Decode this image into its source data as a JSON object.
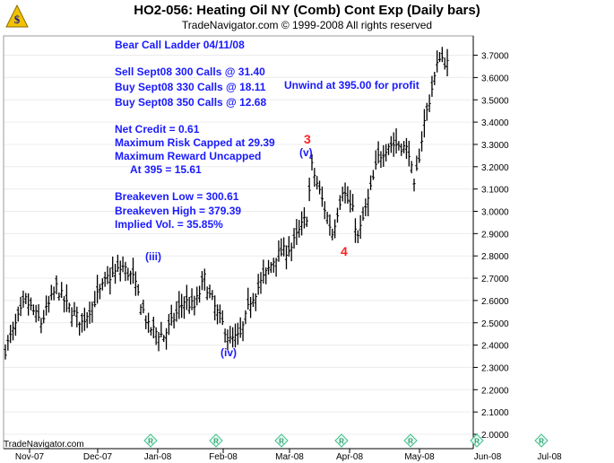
{
  "header": {
    "title": "HO2-056:  Heating Oil NY (Comb) Cont Exp  (Daily bars)",
    "copyright": "TradeNavigator.com © 1999-2008 All rights reserved"
  },
  "watermark": "TradeNavigator.com",
  "notes": {
    "strategy_title": "Bear Call Ladder 04/11/08",
    "leg1": "Sell Sept08 300 Calls @ 31.40",
    "leg2": "Buy Sept08 330 Calls @ 18.11",
    "leg3": "Buy Sept08 350 Calls @ 12.68",
    "net_credit": "Net Credit = 0.61",
    "max_risk": "Maximum Risk Capped at 29.39",
    "max_reward": "Maximum Reward Uncapped",
    "at_395": "At 395 = 15.61",
    "breakeven_low": "Breakeven Low = 300.61",
    "breakeven_high": "Breakeven High = 379.39",
    "implied_vol": "Implied Vol. = 35.85%",
    "unwind": "Unwind at 395.00 for profit"
  },
  "waves": {
    "iii": "(iii)",
    "iv": "(iv)",
    "three": "3",
    "v": "(v)",
    "four": "4"
  },
  "chart_data": {
    "type": "ohlc",
    "title": "HO2-056:  Heating Oil NY (Comb) Cont Exp  (Daily bars)",
    "x_tick_labels": [
      "Nov-07",
      "Dec-07",
      "Jan-08",
      "Feb-08",
      "Mar-08",
      "Apr-08",
      "May-08",
      "Jun-08",
      "Jul-08"
    ],
    "y_tick_labels": [
      "2.0000",
      "2.1000",
      "2.2000",
      "2.3000",
      "2.4000",
      "2.5000",
      "2.6000",
      "2.7000",
      "2.8000",
      "2.9000",
      "3.0000",
      "3.1000",
      "3.2000",
      "3.3000",
      "3.4000",
      "3.5000",
      "3.6000",
      "3.7000"
    ],
    "ylim": [
      1.95,
      3.76
    ],
    "close_path": [
      [
        0,
        2.38
      ],
      [
        8,
        2.6
      ],
      [
        14,
        2.5
      ],
      [
        20,
        2.66
      ],
      [
        24,
        2.58
      ],
      [
        30,
        2.5
      ],
      [
        37,
        2.64
      ],
      [
        40,
        2.7
      ],
      [
        46,
        2.75
      ],
      [
        50,
        2.7
      ],
      [
        56,
        2.48
      ],
      [
        62,
        2.44
      ],
      [
        66,
        2.52
      ],
      [
        70,
        2.6
      ],
      [
        74,
        2.57
      ],
      [
        78,
        2.7
      ],
      [
        80,
        2.62
      ],
      [
        88,
        2.42
      ],
      [
        92,
        2.44
      ],
      [
        96,
        2.6
      ],
      [
        102,
        2.72
      ],
      [
        106,
        2.8
      ],
      [
        112,
        2.84
      ],
      [
        118,
        2.98
      ],
      [
        120,
        3.2
      ],
      [
        124,
        3.05
      ],
      [
        128,
        2.9
      ],
      [
        132,
        3.1
      ],
      [
        136,
        3.0
      ],
      [
        138,
        2.88
      ],
      [
        142,
        3.05
      ],
      [
        146,
        3.24
      ],
      [
        150,
        3.3
      ],
      [
        154,
        3.3
      ],
      [
        158,
        3.27
      ],
      [
        160,
        3.1
      ],
      [
        164,
        3.4
      ],
      [
        168,
        3.6
      ],
      [
        170,
        3.7
      ],
      [
        173,
        3.66
      ]
    ]
  }
}
